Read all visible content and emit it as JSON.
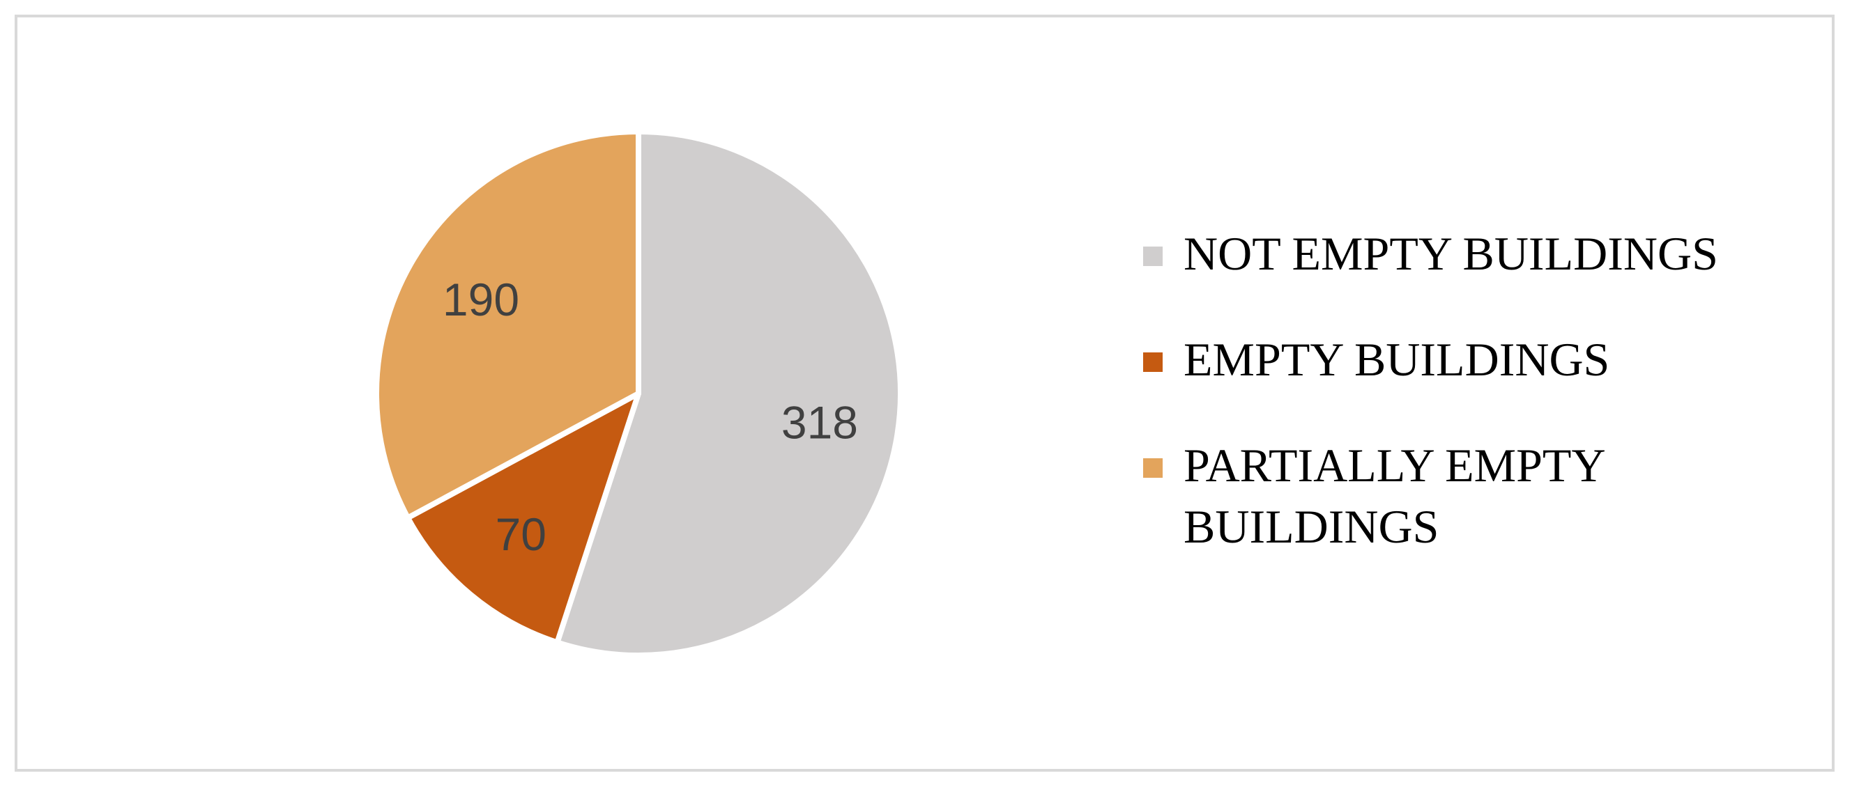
{
  "chart_data": {
    "type": "pie",
    "title": "",
    "categories": [
      "NOT EMPTY BUILDINGS",
      "EMPTY BUILDINGS",
      "PARTIALLY EMPTY BUILDINGS"
    ],
    "values": [
      318,
      70,
      190
    ],
    "data_labels": [
      "318",
      "70",
      "190"
    ],
    "colors": [
      "#d0cece",
      "#c55a11",
      "#e3a45c"
    ],
    "legend_position": "right",
    "start": "top",
    "direction": "clockwise"
  }
}
